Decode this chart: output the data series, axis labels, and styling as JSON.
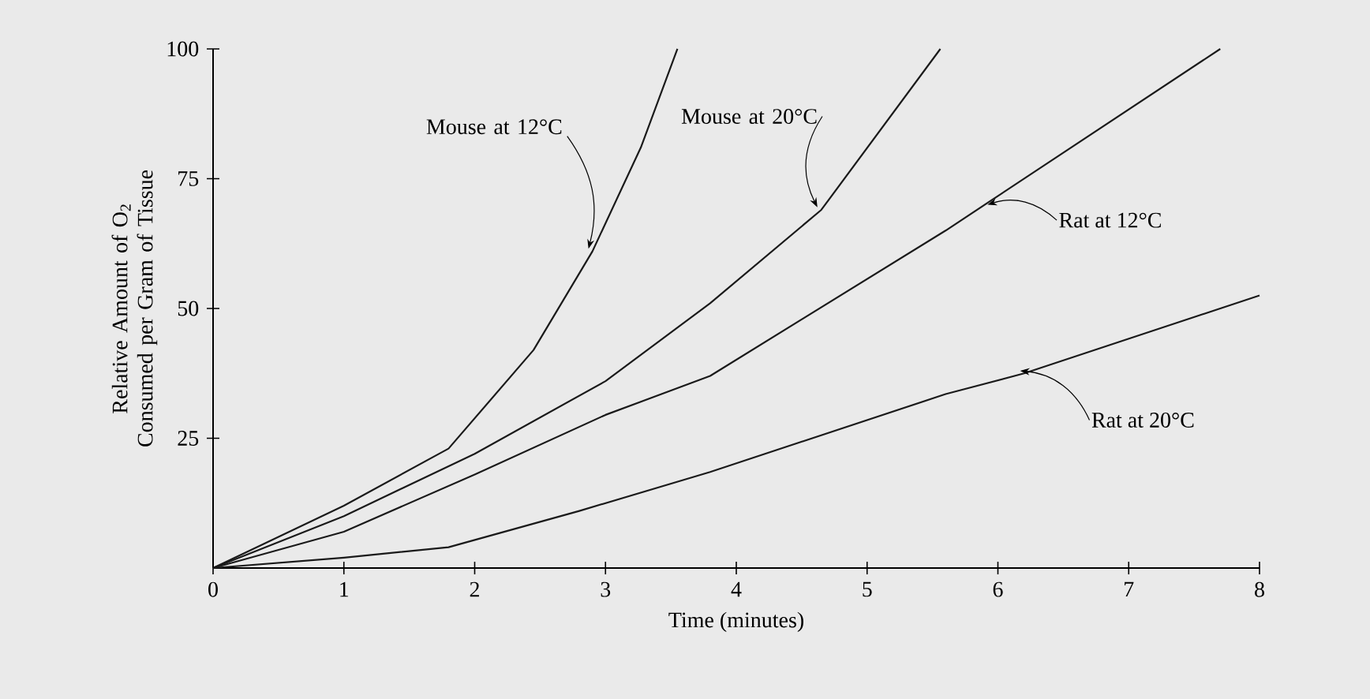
{
  "chart_data": {
    "type": "line",
    "xlabel": "Time (minutes)",
    "ylabel": "Relative Amount of O$_{2}$ Consumed per Gram of Tissue",
    "xlim": [
      0,
      8
    ],
    "ylim": [
      0,
      100
    ],
    "xticks": [
      0,
      1,
      2,
      3,
      4,
      5,
      6,
      7,
      8
    ],
    "yticks": [
      25,
      50,
      75,
      100
    ],
    "grid": false,
    "marker": "none",
    "line_style": "solid",
    "series": [
      {
        "color": "#1a1a1a",
        "x": [
          0,
          1.0,
          1.8,
          2.45,
          2.9,
          3.27,
          3.55
        ],
        "values": [
          0,
          12,
          23,
          42,
          61,
          81,
          100
        ]
      },
      {
        "color": "#1a1a1a",
        "x": [
          0,
          1.0,
          2.0,
          3.0,
          3.8,
          4.65,
          5.56
        ],
        "values": [
          0,
          10,
          22,
          36,
          51,
          69,
          100
        ]
      },
      {
        "color": "#1a1a1a",
        "x": [
          0,
          1.0,
          2.0,
          3.0,
          3.8,
          5.6,
          7.7
        ],
        "values": [
          0,
          7,
          18,
          29.5,
          37,
          65,
          100
        ]
      },
      {
        "color": "#1a1a1a",
        "x": [
          0,
          1.0,
          1.8,
          2.8,
          3.8,
          5.6,
          6.2,
          8.0
        ],
        "values": [
          0,
          2,
          4,
          11,
          18.5,
          33.5,
          37.5,
          52.5
        ]
      }
    ],
    "annotations": [
      {
        "text": "Mouse at 12°C",
        "x": 2.9,
        "y": 61
      },
      {
        "text": "Mouse at 20°C",
        "x": 4.65,
        "y": 69
      },
      {
        "text": "Rat at 12°C",
        "x": 5.95,
        "y": 69.5
      },
      {
        "text": "Rat at 20°C",
        "x": 6.2,
        "y": 37.5
      }
    ]
  }
}
